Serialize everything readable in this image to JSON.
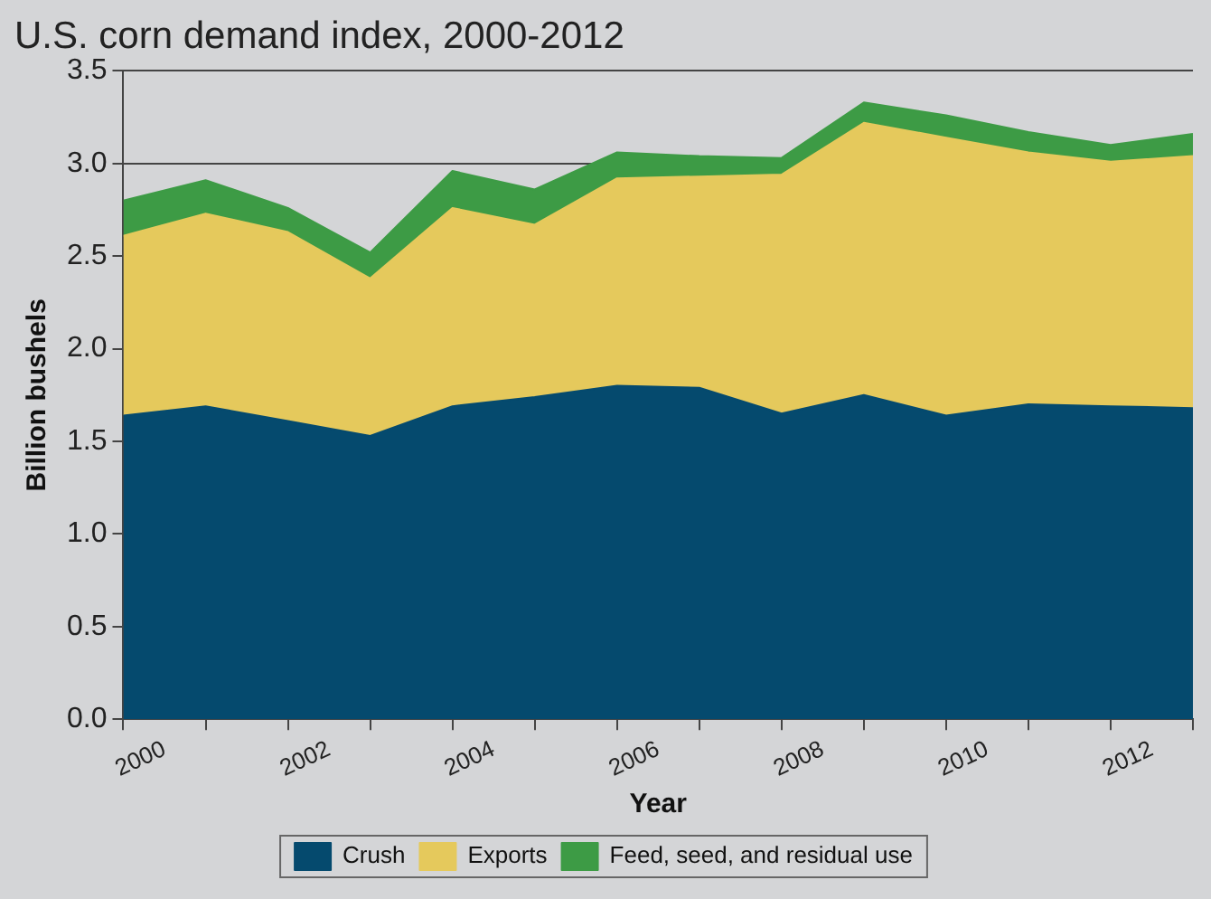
{
  "chart_data": {
    "type": "area",
    "title": "U.S. corn demand index, 2000-2012",
    "xlabel": "Year",
    "ylabel": "Billion bushels",
    "stacked": true,
    "x": [
      1999.5,
      2000.5,
      2001.5,
      2002.5,
      2003.5,
      2004.5,
      2005.5,
      2006.5,
      2007.5,
      2008.5,
      2009.5,
      2010.5,
      2011.5,
      2012.5
    ],
    "series": [
      {
        "name": "Crush",
        "color": "#054a6e",
        "values": [
          1.64,
          1.69,
          1.61,
          1.53,
          1.69,
          1.74,
          1.8,
          1.79,
          1.65,
          1.75,
          1.64,
          1.7,
          1.69,
          1.68
        ]
      },
      {
        "name": "Exports",
        "color": "#e5c95c",
        "values": [
          0.97,
          1.04,
          1.02,
          0.85,
          1.07,
          0.93,
          1.12,
          1.14,
          1.29,
          1.47,
          1.5,
          1.36,
          1.32,
          1.36
        ]
      },
      {
        "name": "Feed, seed, and residual use",
        "color": "#3d9b45",
        "values": [
          0.19,
          0.18,
          0.13,
          0.14,
          0.2,
          0.19,
          0.14,
          0.11,
          0.09,
          0.11,
          0.12,
          0.11,
          0.09,
          0.12
        ]
      }
    ],
    "xlim": [
      1999.5,
      2012.5
    ],
    "xticks": [
      {
        "value": 1999.5,
        "label": null
      },
      {
        "value": 2000,
        "label": "2000"
      },
      {
        "value": 2000.5,
        "label": null
      },
      {
        "value": 2001.5,
        "label": null
      },
      {
        "value": 2002,
        "label": "2002"
      },
      {
        "value": 2002.5,
        "label": null
      },
      {
        "value": 2003.5,
        "label": null
      },
      {
        "value": 2004,
        "label": "2004"
      },
      {
        "value": 2004.5,
        "label": null
      },
      {
        "value": 2005.5,
        "label": null
      },
      {
        "value": 2006,
        "label": "2006"
      },
      {
        "value": 2006.5,
        "label": null
      },
      {
        "value": 2007.5,
        "label": null
      },
      {
        "value": 2008,
        "label": "2008"
      },
      {
        "value": 2008.5,
        "label": null
      },
      {
        "value": 2009.5,
        "label": null
      },
      {
        "value": 2010,
        "label": "2010"
      },
      {
        "value": 2010.5,
        "label": null
      },
      {
        "value": 2011.5,
        "label": null
      },
      {
        "value": 2012,
        "label": "2012"
      },
      {
        "value": 2012.5,
        "label": null
      }
    ],
    "ylim": [
      0,
      3.5
    ],
    "yticks": [
      {
        "value": 0,
        "label": "0.0"
      },
      0.5,
      {
        "value": 1,
        "label": "1.0"
      },
      1.5,
      {
        "value": 2,
        "label": "2.0"
      },
      2.5,
      {
        "value": 3,
        "label": "3.0"
      },
      3.5
    ],
    "grid": "y",
    "legend": "bottom",
    "marker": "none"
  }
}
